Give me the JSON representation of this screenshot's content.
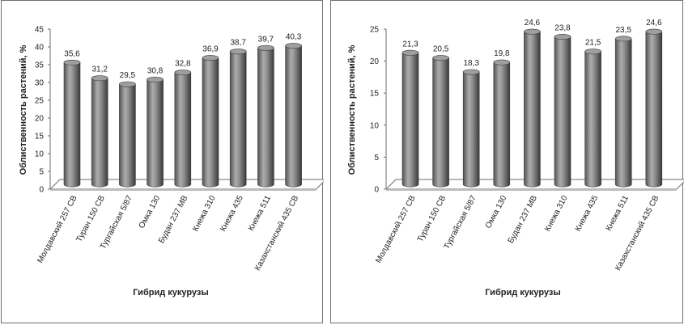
{
  "chart_data": [
    {
      "type": "bar",
      "categories": [
        "Молдавский 257 СВ",
        "Туран 150 СВ",
        "Тургайская 5/87",
        "Омка 130",
        "Будан 237 МВ",
        "Кнежа 310",
        "Кнежа 435",
        "Кнежа 511",
        "Казахстанский 435 СВ"
      ],
      "values": [
        35.6,
        31.2,
        29.5,
        30.8,
        32.8,
        36.9,
        38.7,
        39.7,
        40.3
      ],
      "data_labels": [
        "35,6",
        "31,2",
        "29,5",
        "30,8",
        "32,8",
        "36,9",
        "38,7",
        "39,7",
        "40,3"
      ],
      "xlabel": "Гибрид кукурузы",
      "ylabel": "Облиственность растений, %",
      "ylim": [
        0,
        45
      ],
      "yticks": [
        "0",
        "5",
        "10",
        "15",
        "20",
        "25",
        "30",
        "35",
        "40",
        "45"
      ],
      "grid": false,
      "style": "3d-cylinder",
      "bar_color": "#7f7f7f"
    },
    {
      "type": "bar",
      "categories": [
        "Молдавский 257 СВ",
        "Туран 150 СВ",
        "Тургайская 5/87",
        "Омка 130",
        "Будан 237 МВ",
        "Кнежа 310",
        "Кнежа 435",
        "Кнежа 511",
        "Казахстанский 435 СВ"
      ],
      "values": [
        21.3,
        20.5,
        18.3,
        19.8,
        24.6,
        23.8,
        21.5,
        23.5,
        24.6
      ],
      "data_labels": [
        "21,3",
        "20,5",
        "18,3",
        "19,8",
        "24,6",
        "23,8",
        "21,5",
        "23,5",
        "24,6"
      ],
      "xlabel": "Гибрид кукурузы",
      "ylabel": "Облиственность растений, %",
      "ylim": [
        0,
        25
      ],
      "yticks": [
        "0",
        "5",
        "10",
        "15",
        "20",
        "25"
      ],
      "grid": false,
      "style": "3d-cylinder",
      "bar_color": "#7f7f7f"
    }
  ]
}
